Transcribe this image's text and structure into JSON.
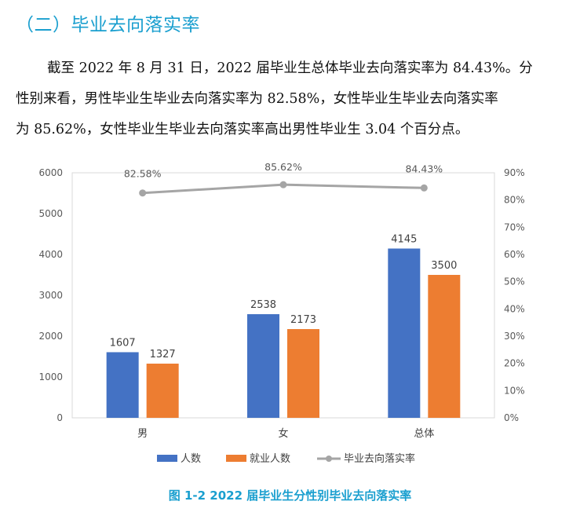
{
  "section_heading": "（二）毕业去向落实率",
  "paragraph": {
    "line1": "截至 2022 年 8 月 31 日，2022 届毕业生总体毕业去向落实率为 84.43%。分",
    "line2": "性别来看，男性毕业生毕业去向落实率为 82.58%，女性毕业生毕业去向落实率",
    "line3": "为 85.62%，女性毕业生毕业去向落实率高出男性毕业生 3.04 个百分点。"
  },
  "caption": "图 1-2 2022 届毕业生分性别毕业去向落实率",
  "chart_data": {
    "type": "bar",
    "categories": [
      "男",
      "女",
      "总体"
    ],
    "series": [
      {
        "name": "人数",
        "kind": "bar",
        "axis": "left",
        "color": "#4472c4",
        "values": [
          1607,
          2538,
          4145
        ],
        "labels": [
          "1607",
          "2538",
          "4145"
        ]
      },
      {
        "name": "就业人数",
        "kind": "bar",
        "axis": "left",
        "color": "#ed7d31",
        "values": [
          1327,
          2173,
          3500
        ],
        "labels": [
          "1327",
          "2173",
          "3500"
        ]
      },
      {
        "name": "毕业去向落实率",
        "kind": "line",
        "axis": "right",
        "color": "#a5a5a5",
        "values": [
          82.58,
          85.62,
          84.43
        ],
        "labels": [
          "82.58%",
          "85.62%",
          "84.43%"
        ]
      }
    ],
    "y_left": {
      "min": 0,
      "max": 6000,
      "ticks": [
        "0",
        "1000",
        "2000",
        "3000",
        "4000",
        "5000",
        "6000"
      ]
    },
    "y_right": {
      "min": 0,
      "max": 90,
      "ticks": [
        "0%",
        "10%",
        "20%",
        "30%",
        "40%",
        "50%",
        "60%",
        "70%",
        "80%",
        "90%"
      ]
    },
    "grid": false,
    "legend_position": "bottom"
  }
}
